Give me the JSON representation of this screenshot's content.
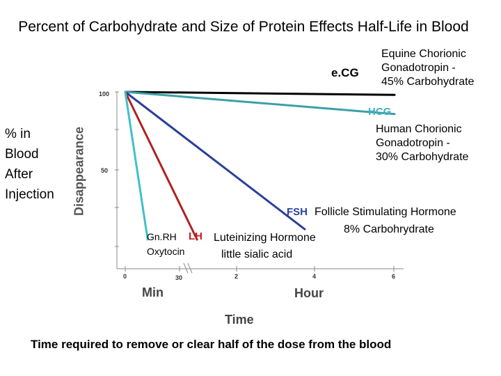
{
  "chart_data": {
    "type": "line",
    "title": "Percent of Carbohydrate and Size of Protein Effects Half-Life in Blood",
    "ylabel": "Disappearance",
    "ylabel_side": "% in Blood After Injection",
    "xlabel": "Time",
    "x_units": [
      "Min",
      "Hour"
    ],
    "y_ticks": [
      "100",
      "50"
    ],
    "x_ticks": [
      "0",
      "30",
      "2",
      "4",
      "6"
    ],
    "series": [
      {
        "name": "e.CG",
        "color": "#000000",
        "points": [
          [
            0,
            100
          ],
          [
            6,
            98
          ]
        ]
      },
      {
        "name": "HCG",
        "color": "#3aa0a8",
        "points": [
          [
            0,
            100
          ],
          [
            6,
            85
          ]
        ]
      },
      {
        "name": "FSH",
        "color": "#2a3f9a",
        "points": [
          [
            0,
            100
          ],
          [
            4,
            7
          ]
        ]
      },
      {
        "name": "LH",
        "color": "#b02020",
        "points": [
          [
            0,
            100
          ],
          [
            1.6,
            0
          ]
        ]
      },
      {
        "name": "Gn.RH",
        "color": "#40c0c8",
        "points": [
          [
            0,
            100
          ],
          [
            0.5,
            0
          ]
        ]
      }
    ],
    "annotations": {
      "ecg_desc": [
        "Equine Chorionic",
        "Gonadotropin -",
        "45% Carbohydrate"
      ],
      "hcg_desc": [
        "Human Chorionic",
        "Gonadotropin -",
        "30% Carbohydrate"
      ],
      "fsh_desc": [
        "Follicle Stimulating Hormone",
        "8% Carbohrydrate"
      ],
      "lh_desc": [
        "Luteinizing Hormone",
        "little sialic acid"
      ],
      "gnrh_desc": [
        "Gn.RH",
        "Oxytocin"
      ]
    },
    "footnote": "Time required to remove or clear half of the dose from the blood"
  }
}
